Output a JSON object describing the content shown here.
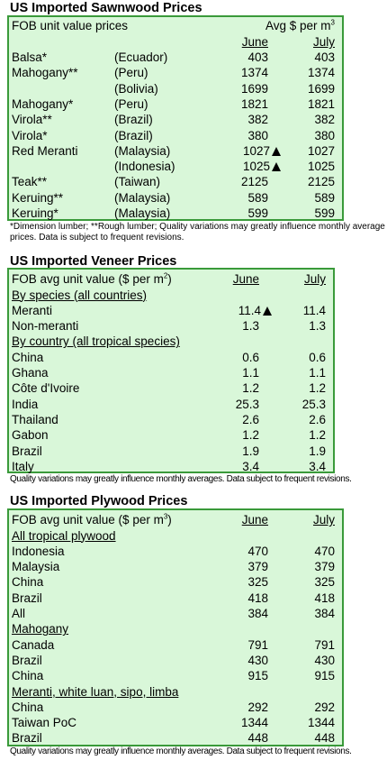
{
  "sawnwood": {
    "title": "US Imported Sawnwood Prices",
    "header_label": "FOB unit value prices",
    "header_unit": "Avg $ per m",
    "header_unit_sup": "3",
    "col1": "June",
    "col2": "July",
    "rows": [
      {
        "name": "Balsa*",
        "country": "(Ecuador)",
        "june": "403",
        "july": "403",
        "arrow": false
      },
      {
        "name": "Mahogany**",
        "country": "(Peru)",
        "june": "1374",
        "july": "1374",
        "arrow": false
      },
      {
        "name": "",
        "country": "(Bolivia)",
        "june": "1699",
        "july": "1699",
        "arrow": false
      },
      {
        "name": "Mahogany*",
        "country": "(Peru)",
        "june": "1821",
        "july": "1821",
        "arrow": false
      },
      {
        "name": "Virola**",
        "country": "(Brazil)",
        "june": "382",
        "july": "382",
        "arrow": false
      },
      {
        "name": "Virola*",
        "country": "(Brazil)",
        "june": "380",
        "july": "380",
        "arrow": false
      },
      {
        "name": "Red Meranti",
        "country": "(Malaysia)",
        "june": "1027",
        "july": "1027",
        "arrow": true
      },
      {
        "name": "",
        "country": "(Indonesia)",
        "june": "1025",
        "july": "1025",
        "arrow": true
      },
      {
        "name": "Teak**",
        "country": "(Taiwan)",
        "june": "2125",
        "july": "2125",
        "arrow": false
      },
      {
        "name": "Keruing**",
        "country": "(Malaysia)",
        "june": "589",
        "july": "589",
        "arrow": false
      },
      {
        "name": "Keruing*",
        "country": "(Malaysia)",
        "june": "599",
        "july": "599",
        "arrow": false
      }
    ],
    "note": "*Dimension lumber; **Rough lumber; Quality variations may greatly influence monthly average prices. Data is subject to frequent revisions."
  },
  "veneer": {
    "title": "US Imported Veneer Prices",
    "header_label": "FOB avg unit value ($ per m",
    "header_sup": "2",
    "header_close": ")",
    "col1": "June",
    "col2": "July",
    "rows": [
      {
        "name": "By species (all countries)",
        "june": "",
        "july": "",
        "section": true,
        "arrow": false
      },
      {
        "name": "Meranti",
        "june": "11.4",
        "july": "11.4",
        "section": false,
        "arrow": true
      },
      {
        "name": "Non-meranti",
        "june": "1.3",
        "july": "1.3",
        "section": false,
        "arrow": false
      },
      {
        "name": "By country (all tropical species)",
        "june": "",
        "july": "",
        "section": true,
        "arrow": false
      },
      {
        "name": "China",
        "june": "0.6",
        "july": "0.6",
        "section": false,
        "arrow": false
      },
      {
        "name": "Ghana",
        "june": "1.1",
        "july": "1.1",
        "section": false,
        "arrow": false
      },
      {
        "name": "Côte d'Ivoire",
        "june": "1.2",
        "july": "1.2",
        "section": false,
        "arrow": false
      },
      {
        "name": "India",
        "june": "25.3",
        "july": "25.3",
        "section": false,
        "arrow": false
      },
      {
        "name": "Thailand",
        "june": "2.6",
        "july": "2.6",
        "section": false,
        "arrow": false
      },
      {
        "name": "Gabon",
        "june": "1.2",
        "july": "1.2",
        "section": false,
        "arrow": false
      },
      {
        "name": "Brazil",
        "june": "1.9",
        "july": "1.9",
        "section": false,
        "arrow": false
      },
      {
        "name": "Italy",
        "june": "3.4",
        "july": "3.4",
        "section": false,
        "arrow": false
      }
    ],
    "note": "Quality variations may greatly influence monthly averages. Data subject to frequent revisions."
  },
  "plywood": {
    "title": "US Imported Plywood Prices",
    "header_label": "FOB avg unit value ($ per m",
    "header_sup": "3",
    "header_close": ")",
    "col1": "June",
    "col2": "July",
    "rows": [
      {
        "name": "All tropical plywood",
        "june": "",
        "july": "",
        "section": true
      },
      {
        "name": "Indonesia",
        "june": "470",
        "july": "470",
        "section": false
      },
      {
        "name": "Malaysia",
        "june": "379",
        "july": "379",
        "section": false
      },
      {
        "name": "China",
        "june": "325",
        "july": "325",
        "section": false
      },
      {
        "name": "Brazil",
        "june": "418",
        "july": "418",
        "section": false
      },
      {
        "name": "All",
        "june": "384",
        "july": "384",
        "section": false
      },
      {
        "name": "Mahogany",
        "june": "",
        "july": "",
        "section": true
      },
      {
        "name": "Canada",
        "june": "791",
        "july": "791",
        "section": false
      },
      {
        "name": "Brazil",
        "june": "430",
        "july": "430",
        "section": false
      },
      {
        "name": "China",
        "june": "915",
        "july": "915",
        "section": false
      },
      {
        "name": "Meranti, white luan, sipo, limba",
        "june": "",
        "july": "",
        "section": true
      },
      {
        "name": "China",
        "june": "292",
        "july": "292",
        "section": false
      },
      {
        "name": "Taiwan PoC",
        "june": "1344",
        "july": "1344",
        "section": false
      },
      {
        "name": "Brazil",
        "june": "448",
        "july": "448",
        "section": false
      }
    ],
    "note": "Quality variations may greatly influence monthly averages. Data subject to frequent revisions."
  }
}
